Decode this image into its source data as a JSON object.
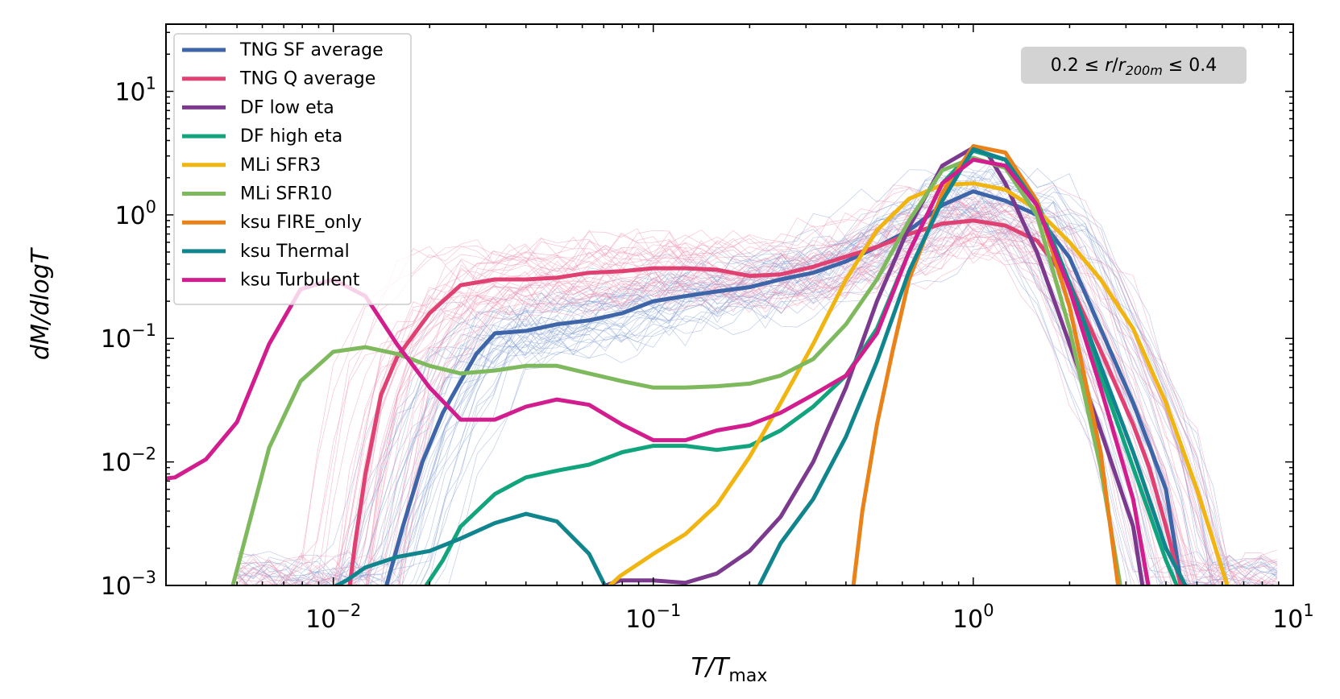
{
  "chart_data": {
    "type": "line",
    "xlabel": "T/T",
    "xlabel_sub": "max",
    "ylabel": "dM/dlogT",
    "xscale": "log",
    "yscale": "log",
    "xlim": [
      0.003,
      10
    ],
    "ylim": [
      0.001,
      35
    ],
    "x_ticks": [
      {
        "value": 0.01,
        "base": "10",
        "exp": "−2"
      },
      {
        "value": 0.1,
        "base": "10",
        "exp": "−1"
      },
      {
        "value": 1,
        "base": "10",
        "exp": "0"
      },
      {
        "value": 10,
        "base": "10",
        "exp": "1"
      }
    ],
    "y_ticks": [
      {
        "value": 0.001,
        "base": "10",
        "exp": "−3"
      },
      {
        "value": 0.01,
        "base": "10",
        "exp": "−2"
      },
      {
        "value": 0.1,
        "base": "10",
        "exp": "−1"
      },
      {
        "value": 1,
        "base": "10",
        "exp": "0"
      },
      {
        "value": 10,
        "base": "10",
        "exp": "1"
      }
    ],
    "grid": false,
    "legend_position": "top-left",
    "annotation": {
      "text_lhs": "0.2 ≤ ",
      "r": "r",
      "slash": "/",
      "r2": "r",
      "sub": "200m",
      "text_rhs": " ≤ 0.4",
      "position": "top-right"
    },
    "series": [
      {
        "name": "TNG SF average",
        "color": "#3d65a8",
        "width": 5,
        "points": [
          [
            0.0145,
            0.0009
          ],
          [
            0.0165,
            0.003
          ],
          [
            0.019,
            0.01
          ],
          [
            0.022,
            0.025
          ],
          [
            0.025,
            0.045
          ],
          [
            0.028,
            0.075
          ],
          [
            0.032,
            0.11
          ],
          [
            0.04,
            0.115
          ],
          [
            0.05,
            0.13
          ],
          [
            0.063,
            0.14
          ],
          [
            0.08,
            0.16
          ],
          [
            0.1,
            0.2
          ],
          [
            0.126,
            0.22
          ],
          [
            0.158,
            0.24
          ],
          [
            0.2,
            0.26
          ],
          [
            0.25,
            0.3
          ],
          [
            0.316,
            0.34
          ],
          [
            0.4,
            0.42
          ],
          [
            0.5,
            0.55
          ],
          [
            0.63,
            0.75
          ],
          [
            0.8,
            1.2
          ],
          [
            1.0,
            1.55
          ],
          [
            1.26,
            1.3
          ],
          [
            1.58,
            1.0
          ],
          [
            2.0,
            0.45
          ],
          [
            2.5,
            0.12
          ],
          [
            3.16,
            0.03
          ],
          [
            4.0,
            0.006
          ],
          [
            4.5,
            0.0009
          ]
        ]
      },
      {
        "name": "TNG Q average",
        "color": "#e04173",
        "width": 5,
        "points": [
          [
            0.0112,
            0.0009
          ],
          [
            0.0117,
            0.0022
          ],
          [
            0.0126,
            0.008
          ],
          [
            0.0141,
            0.035
          ],
          [
            0.0158,
            0.07
          ],
          [
            0.02,
            0.16
          ],
          [
            0.025,
            0.27
          ],
          [
            0.032,
            0.3
          ],
          [
            0.04,
            0.3
          ],
          [
            0.05,
            0.31
          ],
          [
            0.063,
            0.34
          ],
          [
            0.08,
            0.35
          ],
          [
            0.1,
            0.37
          ],
          [
            0.126,
            0.37
          ],
          [
            0.158,
            0.36
          ],
          [
            0.2,
            0.32
          ],
          [
            0.25,
            0.33
          ],
          [
            0.316,
            0.38
          ],
          [
            0.4,
            0.46
          ],
          [
            0.5,
            0.55
          ],
          [
            0.63,
            0.7
          ],
          [
            0.8,
            0.85
          ],
          [
            1.0,
            0.9
          ],
          [
            1.26,
            0.82
          ],
          [
            1.58,
            0.62
          ],
          [
            2.0,
            0.28
          ],
          [
            2.5,
            0.08
          ],
          [
            3.16,
            0.02
          ],
          [
            3.55,
            0.009
          ],
          [
            4.0,
            0.003
          ],
          [
            4.5,
            0.0009
          ]
        ]
      },
      {
        "name": "DF low eta",
        "color": "#7b3a8e",
        "width": 5,
        "points": [
          [
            0.063,
            0.0009
          ],
          [
            0.079,
            0.0011
          ],
          [
            0.1,
            0.0011
          ],
          [
            0.126,
            0.00105
          ],
          [
            0.158,
            0.00125
          ],
          [
            0.2,
            0.0019
          ],
          [
            0.25,
            0.0036
          ],
          [
            0.316,
            0.01
          ],
          [
            0.4,
            0.04
          ],
          [
            0.5,
            0.2
          ],
          [
            0.63,
            0.8
          ],
          [
            0.8,
            2.5
          ],
          [
            1.0,
            3.5
          ],
          [
            1.12,
            3.0
          ],
          [
            1.26,
            1.8
          ],
          [
            1.58,
            0.5
          ],
          [
            2.0,
            0.09
          ],
          [
            2.5,
            0.018
          ],
          [
            3.16,
            0.003
          ],
          [
            3.4,
            0.0009
          ]
        ]
      },
      {
        "name": "DF high eta",
        "color": "#12a47d",
        "width": 5,
        "points": [
          [
            0.019,
            0.0009
          ],
          [
            0.022,
            0.0016
          ],
          [
            0.025,
            0.003
          ],
          [
            0.032,
            0.0055
          ],
          [
            0.04,
            0.0075
          ],
          [
            0.05,
            0.0085
          ],
          [
            0.063,
            0.0095
          ],
          [
            0.08,
            0.012
          ],
          [
            0.1,
            0.0135
          ],
          [
            0.126,
            0.0135
          ],
          [
            0.158,
            0.0125
          ],
          [
            0.2,
            0.0135
          ],
          [
            0.25,
            0.018
          ],
          [
            0.316,
            0.028
          ],
          [
            0.4,
            0.05
          ],
          [
            0.5,
            0.12
          ],
          [
            0.63,
            0.5
          ],
          [
            0.8,
            1.8
          ],
          [
            1.0,
            3.3
          ],
          [
            1.26,
            2.8
          ],
          [
            1.58,
            1.3
          ],
          [
            2.0,
            0.28
          ],
          [
            2.5,
            0.05
          ],
          [
            3.16,
            0.009
          ],
          [
            4.0,
            0.0016
          ],
          [
            4.4,
            0.0009
          ]
        ]
      },
      {
        "name": "MLi SFR3",
        "color": "#f1b512",
        "width": 5,
        "points": [
          [
            0.07,
            0.0009
          ],
          [
            0.079,
            0.0012
          ],
          [
            0.1,
            0.0018
          ],
          [
            0.126,
            0.0026
          ],
          [
            0.158,
            0.0045
          ],
          [
            0.2,
            0.011
          ],
          [
            0.25,
            0.03
          ],
          [
            0.316,
            0.09
          ],
          [
            0.4,
            0.3
          ],
          [
            0.5,
            0.75
          ],
          [
            0.63,
            1.35
          ],
          [
            0.8,
            1.75
          ],
          [
            1.0,
            1.8
          ],
          [
            1.26,
            1.6
          ],
          [
            1.58,
            1.1
          ],
          [
            2.0,
            0.6
          ],
          [
            2.5,
            0.3
          ],
          [
            3.16,
            0.12
          ],
          [
            4.0,
            0.03
          ],
          [
            5.0,
            0.006
          ],
          [
            6.3,
            0.0009
          ]
        ]
      },
      {
        "name": "MLi SFR10",
        "color": "#7fb95d",
        "width": 5,
        "points": [
          [
            0.0048,
            0.0009
          ],
          [
            0.0063,
            0.013
          ],
          [
            0.0079,
            0.045
          ],
          [
            0.01,
            0.078
          ],
          [
            0.0126,
            0.085
          ],
          [
            0.0158,
            0.075
          ],
          [
            0.02,
            0.06
          ],
          [
            0.025,
            0.052
          ],
          [
            0.032,
            0.055
          ],
          [
            0.04,
            0.06
          ],
          [
            0.05,
            0.06
          ],
          [
            0.063,
            0.052
          ],
          [
            0.08,
            0.045
          ],
          [
            0.1,
            0.04
          ],
          [
            0.126,
            0.04
          ],
          [
            0.158,
            0.041
          ],
          [
            0.2,
            0.043
          ],
          [
            0.25,
            0.05
          ],
          [
            0.316,
            0.068
          ],
          [
            0.4,
            0.13
          ],
          [
            0.5,
            0.3
          ],
          [
            0.63,
            0.9
          ],
          [
            0.8,
            2.3
          ],
          [
            1.0,
            2.9
          ],
          [
            1.26,
            2.4
          ],
          [
            1.58,
            1.0
          ],
          [
            2.0,
            0.12
          ],
          [
            2.5,
            0.009
          ],
          [
            2.9,
            0.0009
          ]
        ]
      },
      {
        "name": "ksu FIRE_only",
        "color": "#e98218",
        "width": 5,
        "points": [
          [
            0.42,
            0.0009
          ],
          [
            0.45,
            0.004
          ],
          [
            0.5,
            0.02
          ],
          [
            0.56,
            0.08
          ],
          [
            0.63,
            0.3
          ],
          [
            0.8,
            1.5
          ],
          [
            1.0,
            3.6
          ],
          [
            1.26,
            3.2
          ],
          [
            1.58,
            1.3
          ],
          [
            2.0,
            0.18
          ],
          [
            2.5,
            0.012
          ],
          [
            2.85,
            0.0009
          ]
        ]
      },
      {
        "name": "ksu Thermal",
        "color": "#11858d",
        "width": 5,
        "points": [
          [
            0.0095,
            0.0009
          ],
          [
            0.011,
            0.0011
          ],
          [
            0.0126,
            0.0014
          ],
          [
            0.0158,
            0.0017
          ],
          [
            0.02,
            0.0019
          ],
          [
            0.025,
            0.0024
          ],
          [
            0.032,
            0.0032
          ],
          [
            0.04,
            0.0038
          ],
          [
            0.05,
            0.0033
          ],
          [
            0.063,
            0.0018
          ],
          [
            0.072,
            0.0009
          ],
          [
            0.21,
            0.0009
          ],
          [
            0.25,
            0.0022
          ],
          [
            0.316,
            0.005
          ],
          [
            0.4,
            0.016
          ],
          [
            0.5,
            0.065
          ],
          [
            0.63,
            0.35
          ],
          [
            0.8,
            1.3
          ],
          [
            1.0,
            3.4
          ],
          [
            1.26,
            2.8
          ],
          [
            1.58,
            1.2
          ],
          [
            2.0,
            0.28
          ],
          [
            2.5,
            0.06
          ],
          [
            3.16,
            0.012
          ],
          [
            4.0,
            0.002
          ],
          [
            4.7,
            0.0009
          ]
        ]
      },
      {
        "name": "ksu Turbulent",
        "color": "#d21d8e",
        "width": 5,
        "points": [
          [
            0.0028,
            0.0072
          ],
          [
            0.0032,
            0.0075
          ],
          [
            0.004,
            0.0105
          ],
          [
            0.005,
            0.021
          ],
          [
            0.0063,
            0.09
          ],
          [
            0.0079,
            0.25
          ],
          [
            0.01,
            0.3
          ],
          [
            0.0126,
            0.22
          ],
          [
            0.0158,
            0.09
          ],
          [
            0.02,
            0.04
          ],
          [
            0.025,
            0.022
          ],
          [
            0.032,
            0.022
          ],
          [
            0.04,
            0.028
          ],
          [
            0.05,
            0.032
          ],
          [
            0.063,
            0.029
          ],
          [
            0.08,
            0.02
          ],
          [
            0.1,
            0.015
          ],
          [
            0.126,
            0.015
          ],
          [
            0.158,
            0.018
          ],
          [
            0.2,
            0.02
          ],
          [
            0.25,
            0.025
          ],
          [
            0.316,
            0.035
          ],
          [
            0.4,
            0.05
          ],
          [
            0.5,
            0.11
          ],
          [
            0.63,
            0.5
          ],
          [
            0.8,
            1.8
          ],
          [
            1.0,
            2.8
          ],
          [
            1.26,
            2.5
          ],
          [
            1.58,
            1.2
          ],
          [
            2.0,
            0.25
          ],
          [
            2.5,
            0.04
          ],
          [
            3.16,
            0.005
          ],
          [
            3.55,
            0.0009
          ]
        ]
      }
    ]
  }
}
